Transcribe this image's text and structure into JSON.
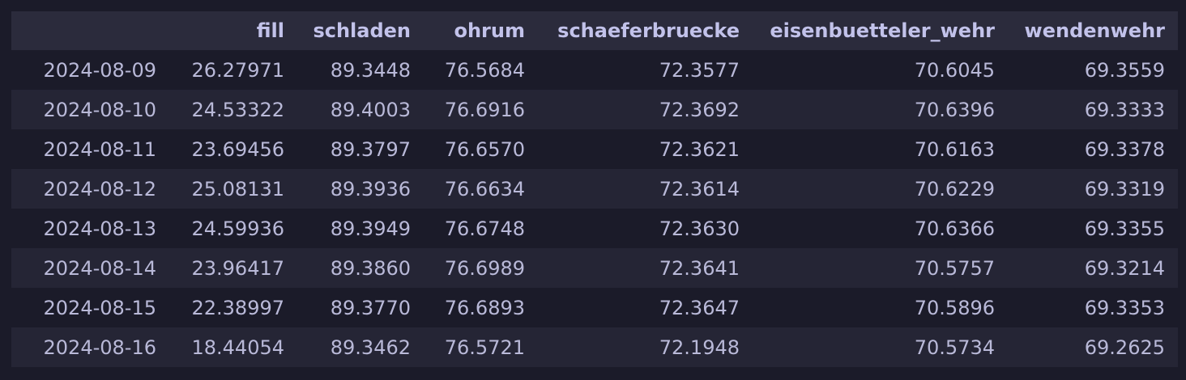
{
  "table": {
    "columns": [
      "",
      "fill",
      "schladen",
      "ohrum",
      "schaeferbruecke",
      "eisenbuetteler_wehr",
      "wendenwehr"
    ],
    "rows": [
      [
        "2024-08-09",
        "26.27971",
        "89.3448",
        "76.5684",
        "72.3577",
        "70.6045",
        "69.3559"
      ],
      [
        "2024-08-10",
        "24.53322",
        "89.4003",
        "76.6916",
        "72.3692",
        "70.6396",
        "69.3333"
      ],
      [
        "2024-08-11",
        "23.69456",
        "89.3797",
        "76.6570",
        "72.3621",
        "70.6163",
        "69.3378"
      ],
      [
        "2024-08-12",
        "25.08131",
        "89.3936",
        "76.6634",
        "72.3614",
        "70.6229",
        "69.3319"
      ],
      [
        "2024-08-13",
        "24.59936",
        "89.3949",
        "76.6748",
        "72.3630",
        "70.6366",
        "69.3355"
      ],
      [
        "2024-08-14",
        "23.96417",
        "89.3860",
        "76.6989",
        "72.3641",
        "70.5757",
        "69.3214"
      ],
      [
        "2024-08-15",
        "22.38997",
        "89.3770",
        "76.6893",
        "72.3647",
        "70.5896",
        "69.3353"
      ],
      [
        "2024-08-16",
        "18.44054",
        "89.3462",
        "76.5721",
        "72.1948",
        "70.5734",
        "69.2625"
      ]
    ]
  }
}
